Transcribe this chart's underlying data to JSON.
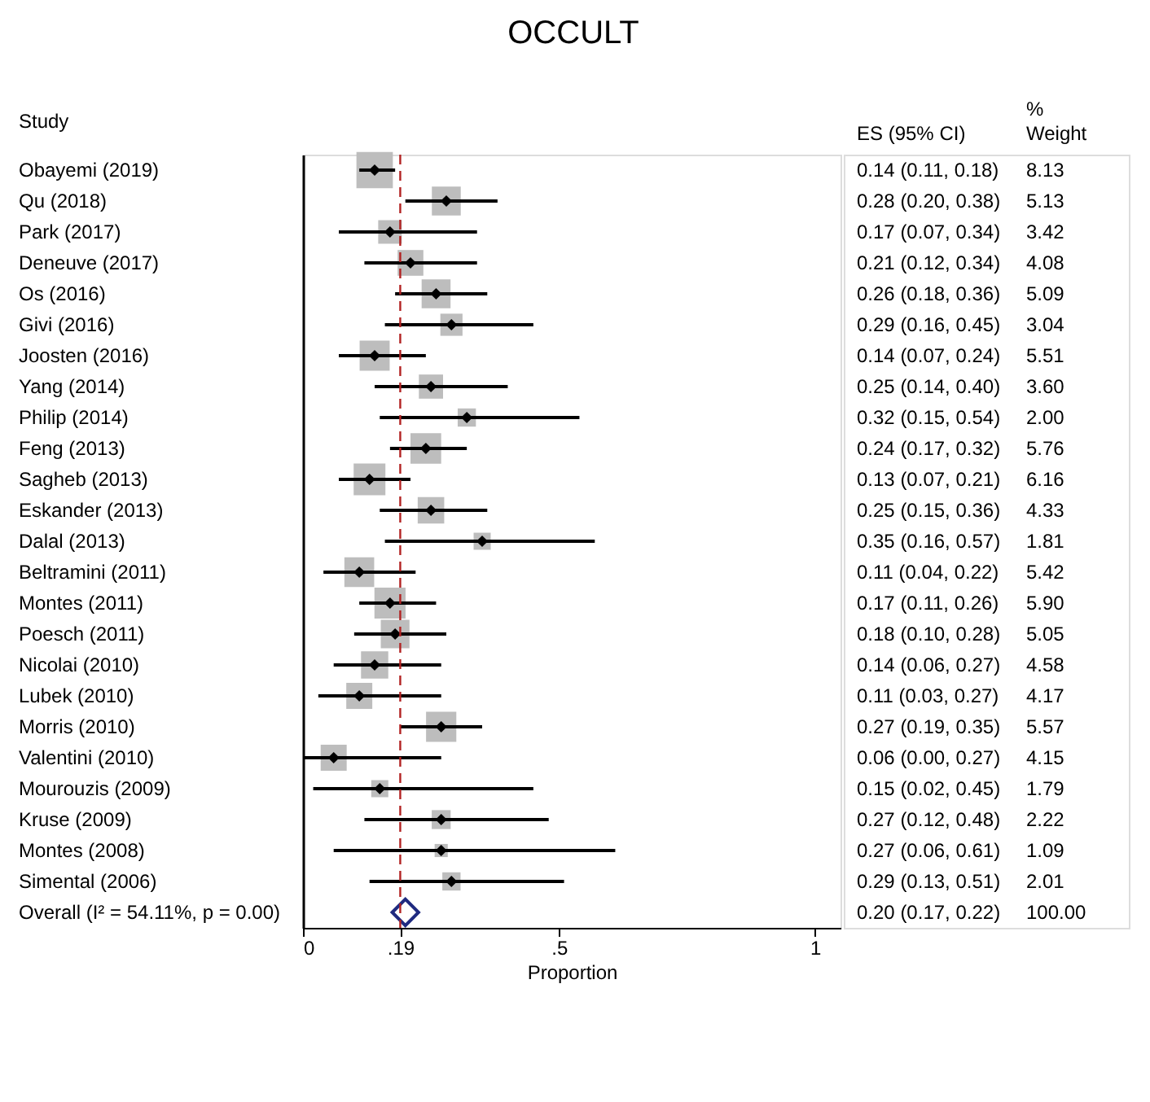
{
  "chart_data": {
    "type": "scatter",
    "title": "OCCULT",
    "xlabel": "Proportion",
    "ylabel": "Study",
    "orientation": "horizontal",
    "categories": [
      "Obayemi (2019)",
      "Qu (2018)",
      "Park (2017)",
      "Deneuve (2017)",
      "Os (2016)",
      "Givi (2016)",
      "Joosten (2016)",
      "Yang (2014)",
      "Philip (2014)",
      "Feng (2013)",
      "Sagheb (2013)",
      "Eskander (2013)",
      "Dalal (2013)",
      "Beltramini (2011)",
      "Montes (2011)",
      "Poesch (2011)",
      "Nicolai (2010)",
      "Lubek (2010)",
      "Morris (2010)",
      "Valentini (2010)",
      "Mourouzis (2009)",
      "Kruse (2009)",
      "Montes (2008)",
      "Simental (2006)",
      "Overall  (I² = 54.11%,  p = 0.00)"
    ],
    "series": [
      {
        "color": "#bdbdbd",
        "marker": "square",
        "values": [
          0.14,
          0.28,
          0.17,
          0.21,
          0.26,
          0.29,
          0.14,
          0.25,
          0.32,
          0.24,
          0.13,
          0.25,
          0.35,
          0.11,
          0.17,
          0.18,
          0.14,
          0.11,
          0.27,
          0.06,
          0.15,
          0.27,
          0.27,
          0.29,
          null
        ],
        "sizes": [
          1.0,
          0.63,
          0.42,
          0.5,
          0.63,
          0.37,
          0.68,
          0.44,
          0.25,
          0.71,
          0.76,
          0.53,
          0.22,
          0.67,
          0.73,
          0.62,
          0.56,
          0.51,
          0.69,
          0.51,
          0.22,
          0.27,
          0.13,
          0.25,
          null
        ]
      },
      {
        "color": "#000000",
        "marker": "diamond",
        "values": [
          0.14,
          0.28,
          0.17,
          0.21,
          0.26,
          0.29,
          0.14,
          0.25,
          0.32,
          0.24,
          0.13,
          0.25,
          0.35,
          0.11,
          0.17,
          0.18,
          0.14,
          0.11,
          0.27,
          0.06,
          0.15,
          0.27,
          0.27,
          0.29,
          null
        ],
        "errors": [
          [
            0.11,
            0.18
          ],
          [
            0.2,
            0.38
          ],
          [
            0.07,
            0.34
          ],
          [
            0.12,
            0.34
          ],
          [
            0.18,
            0.36
          ],
          [
            0.16,
            0.45
          ],
          [
            0.07,
            0.24
          ],
          [
            0.14,
            0.4
          ],
          [
            0.15,
            0.54
          ],
          [
            0.17,
            0.32
          ],
          [
            0.07,
            0.21
          ],
          [
            0.15,
            0.36
          ],
          [
            0.16,
            0.57
          ],
          [
            0.04,
            0.22
          ],
          [
            0.11,
            0.26
          ],
          [
            0.1,
            0.28
          ],
          [
            0.06,
            0.27
          ],
          [
            0.03,
            0.27
          ],
          [
            0.19,
            0.35
          ],
          [
            0.0,
            0.27
          ],
          [
            0.02,
            0.45
          ],
          [
            0.12,
            0.48
          ],
          [
            0.06,
            0.61
          ],
          [
            0.13,
            0.51
          ],
          null
        ]
      },
      {
        "color": "#1f2a80",
        "marker": "diamond",
        "values": [
          null,
          null,
          null,
          null,
          null,
          null,
          null,
          null,
          null,
          null,
          null,
          null,
          null,
          null,
          null,
          null,
          null,
          null,
          null,
          null,
          null,
          null,
          null,
          null,
          0.2
        ]
      }
    ],
    "value_labels": [
      "0.14 (0.11, 0.18)",
      "0.28 (0.20, 0.38)",
      "0.17 (0.07, 0.34)",
      "0.21 (0.12, 0.34)",
      "0.26 (0.18, 0.36)",
      "0.29 (0.16, 0.45)",
      "0.14 (0.07, 0.24)",
      "0.25 (0.14, 0.40)",
      "0.32 (0.15, 0.54)",
      "0.24 (0.17, 0.32)",
      "0.13 (0.07, 0.21)",
      "0.25 (0.15, 0.36)",
      "0.35 (0.16, 0.57)",
      "0.11 (0.04, 0.22)",
      "0.17 (0.11, 0.26)",
      "0.18 (0.10, 0.28)",
      "0.14 (0.06, 0.27)",
      "0.11 (0.03, 0.27)",
      "0.27 (0.19, 0.35)",
      "0.06 (0.00, 0.27)",
      "0.15 (0.02, 0.45)",
      "0.27 (0.12, 0.48)",
      "0.27 (0.06, 0.61)",
      "0.29 (0.13, 0.51)",
      "0.20 (0.17, 0.22)"
    ],
    "annotations": [
      "ES (95% CI)",
      "% Weight",
      "8.13",
      "5.13",
      "3.42",
      "4.08",
      "5.09",
      "3.04",
      "5.51",
      "3.60",
      "2.00",
      "5.76",
      "6.16",
      "4.33",
      "1.81",
      "5.42",
      "5.90",
      "5.05",
      "4.58",
      "4.17",
      "5.57",
      "4.15",
      "1.79",
      "2.22",
      "1.09",
      "2.01",
      "100.00"
    ],
    "xlim": [
      0,
      1.05
    ],
    "xticks": [
      0,
      {
        "value": 0.19,
        "label": ".19"
      },
      {
        "value": 0.5,
        "label": ".5"
      },
      1
    ],
    "ref_lines": [
      {
        "axis": "x",
        "value": 0.19,
        "color": "#b22222",
        "line_style": "dashed"
      }
    ],
    "grid": false
  }
}
